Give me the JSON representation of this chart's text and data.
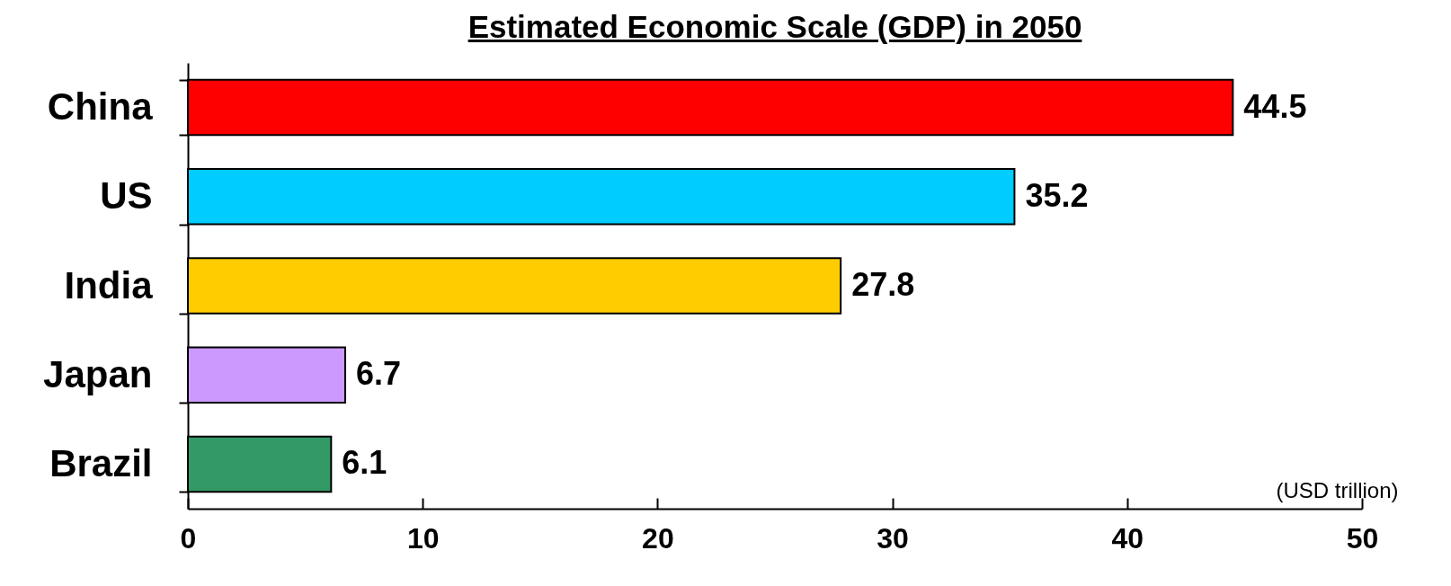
{
  "chart_data": {
    "type": "bar",
    "orientation": "horizontal",
    "title": "Estimated Economic Scale (GDP) in 2050",
    "xlabel": "(USD trillion)",
    "categories": [
      "China",
      "US",
      "India",
      "Japan",
      "Brazil"
    ],
    "values": [
      44.5,
      35.2,
      27.8,
      6.7,
      6.1
    ],
    "colors": [
      "#ff0000",
      "#00ccff",
      "#ffcc00",
      "#cc99ff",
      "#339966"
    ],
    "xlim": [
      0,
      50
    ],
    "xticks": [
      0,
      10,
      20,
      30,
      40,
      50
    ],
    "data_labels": true
  }
}
